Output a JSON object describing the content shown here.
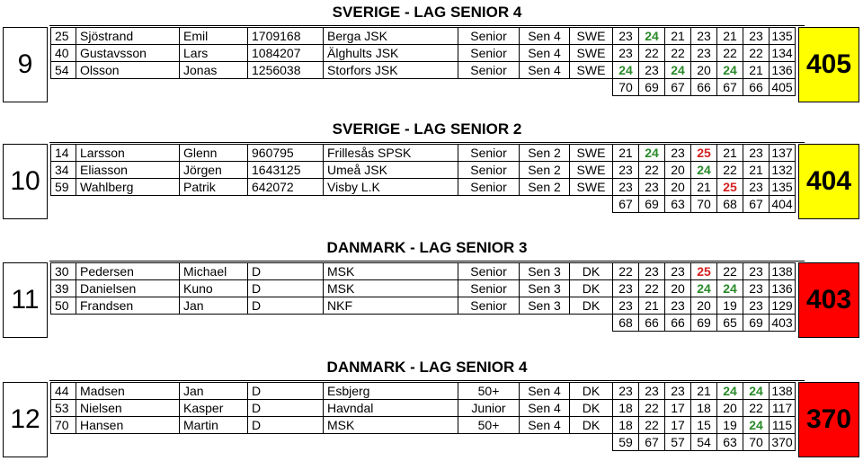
{
  "colors": {
    "yellow": "#ffff00",
    "red": "#ff0000",
    "green_score": "#2a8a2a",
    "red_score": "#d42020"
  },
  "teams": [
    {
      "rank": "9",
      "title": "SVERIGE - LAG SENIOR 4",
      "total": "405",
      "total_color": "#ffff00",
      "rows": [
        {
          "nr": "25",
          "last": "Sjöstrand",
          "first": "Emil",
          "id": "1709168",
          "club": "Berga JSK",
          "cls": "Senior",
          "grp": "Sen 4",
          "nat": "SWE",
          "s": [
            "23",
            "24",
            "21",
            "23",
            "21",
            "23"
          ],
          "hl": [
            "",
            "g",
            "",
            "",
            "",
            ""
          ],
          "sum": "135"
        },
        {
          "nr": "40",
          "last": "Gustavsson",
          "first": "Lars",
          "id": "1084207",
          "club": "Älghults JSK",
          "cls": "Senior",
          "grp": "Sen 4",
          "nat": "SWE",
          "s": [
            "23",
            "22",
            "22",
            "23",
            "22",
            "22"
          ],
          "hl": [
            "",
            "",
            "",
            "",
            "",
            ""
          ],
          "sum": "134"
        },
        {
          "nr": "54",
          "last": "Olsson",
          "first": "Jonas",
          "id": "1256038",
          "club": "Storfors JSK",
          "cls": "Senior",
          "grp": "Sen 4",
          "nat": "SWE",
          "s": [
            "24",
            "23",
            "24",
            "20",
            "24",
            "21"
          ],
          "hl": [
            "g",
            "",
            "g",
            "",
            "g",
            ""
          ],
          "sum": "136"
        }
      ],
      "series_sums": [
        "70",
        "69",
        "67",
        "66",
        "67",
        "66"
      ],
      "series_total": "405"
    },
    {
      "rank": "10",
      "title": "SVERIGE - LAG SENIOR 2",
      "total": "404",
      "total_color": "#ffff00",
      "rows": [
        {
          "nr": "14",
          "last": "Larsson",
          "first": "Glenn",
          "id": "960795",
          "club": "Frillesås SPSK",
          "cls": "Senior",
          "grp": "Sen 2",
          "nat": "SWE",
          "s": [
            "21",
            "24",
            "23",
            "25",
            "21",
            "23"
          ],
          "hl": [
            "",
            "g",
            "",
            "r",
            "",
            ""
          ],
          "sum": "137"
        },
        {
          "nr": "34",
          "last": "Eliasson",
          "first": "Jörgen",
          "id": "1643125",
          "club": "Umeå JSK",
          "cls": "Senior",
          "grp": "Sen 2",
          "nat": "SWE",
          "s": [
            "23",
            "22",
            "20",
            "24",
            "22",
            "21"
          ],
          "hl": [
            "",
            "",
            "",
            "g",
            "",
            ""
          ],
          "sum": "132"
        },
        {
          "nr": "59",
          "last": "Wahlberg",
          "first": "Patrik",
          "id": "642072",
          "club": "Visby L.K",
          "cls": "Senior",
          "grp": "Sen 2",
          "nat": "SWE",
          "s": [
            "23",
            "23",
            "20",
            "21",
            "25",
            "23"
          ],
          "hl": [
            "",
            "",
            "",
            "",
            "r",
            ""
          ],
          "sum": "135"
        }
      ],
      "series_sums": [
        "67",
        "69",
        "63",
        "70",
        "68",
        "67"
      ],
      "series_total": "404"
    },
    {
      "rank": "11",
      "title": "DANMARK - LAG SENIOR 3",
      "total": "403",
      "total_color": "#ff0000",
      "rows": [
        {
          "nr": "30",
          "last": "Pedersen",
          "first": "Michael",
          "id": "D",
          "club": "MSK",
          "cls": "Senior",
          "grp": "Sen 3",
          "nat": "DK",
          "s": [
            "22",
            "23",
            "23",
            "25",
            "22",
            "23"
          ],
          "hl": [
            "",
            "",
            "",
            "r",
            "",
            ""
          ],
          "sum": "138"
        },
        {
          "nr": "39",
          "last": "Danielsen",
          "first": "Kuno",
          "id": "D",
          "club": "MSK",
          "cls": "Senior",
          "grp": "Sen 3",
          "nat": "DK",
          "s": [
            "23",
            "22",
            "20",
            "24",
            "24",
            "23"
          ],
          "hl": [
            "",
            "",
            "",
            "g",
            "g",
            ""
          ],
          "sum": "136"
        },
        {
          "nr": "50",
          "last": "Frandsen",
          "first": "Jan",
          "id": "D",
          "club": "NKF",
          "cls": "Senior",
          "grp": "Sen 3",
          "nat": "DK",
          "s": [
            "23",
            "21",
            "23",
            "20",
            "19",
            "23"
          ],
          "hl": [
            "",
            "",
            "",
            "",
            "",
            ""
          ],
          "sum": "129"
        }
      ],
      "series_sums": [
        "68",
        "66",
        "66",
        "69",
        "65",
        "69"
      ],
      "series_total": "403"
    },
    {
      "rank": "12",
      "title": "DANMARK - LAG SENIOR 4",
      "total": "370",
      "total_color": "#ff0000",
      "rows": [
        {
          "nr": "44",
          "last": "Madsen",
          "first": "Jan",
          "id": "D",
          "club": "Esbjerg",
          "cls": "50+",
          "grp": "Sen 4",
          "nat": "DK",
          "s": [
            "23",
            "23",
            "23",
            "21",
            "24",
            "24"
          ],
          "hl": [
            "",
            "",
            "",
            "",
            "g",
            "g"
          ],
          "sum": "138"
        },
        {
          "nr": "53",
          "last": "Nielsen",
          "first": "Kasper",
          "id": "D",
          "club": "Havndal",
          "cls": "Junior",
          "grp": "Sen 4",
          "nat": "DK",
          "s": [
            "18",
            "22",
            "17",
            "18",
            "20",
            "22"
          ],
          "hl": [
            "",
            "",
            "",
            "",
            "",
            ""
          ],
          "sum": "117"
        },
        {
          "nr": "70",
          "last": "Hansen",
          "first": "Martin",
          "id": "D",
          "club": "MSK",
          "cls": "50+",
          "grp": "Sen 4",
          "nat": "DK",
          "s": [
            "18",
            "22",
            "17",
            "15",
            "19",
            "24"
          ],
          "hl": [
            "",
            "",
            "",
            "",
            "",
            "g"
          ],
          "sum": "115"
        }
      ],
      "series_sums": [
        "59",
        "67",
        "57",
        "54",
        "63",
        "70"
      ],
      "series_total": "370"
    }
  ]
}
